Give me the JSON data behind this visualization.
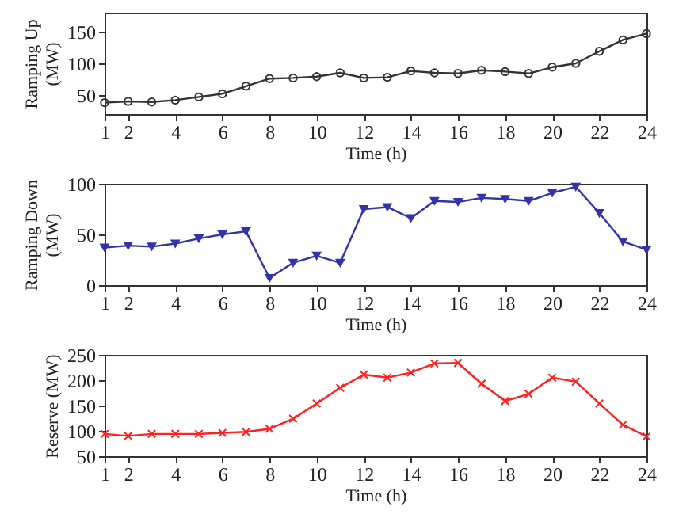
{
  "chart_data": [
    {
      "type": "line",
      "xlabel": "Time (h)",
      "ylabel": "Ramping Up (MW)",
      "x": [
        1,
        2,
        3,
        4,
        5,
        6,
        7,
        8,
        9,
        10,
        11,
        12,
        13,
        14,
        15,
        16,
        17,
        18,
        19,
        20,
        21,
        22,
        23,
        24
      ],
      "xlim": [
        1,
        24
      ],
      "xticks": [
        1,
        2,
        4,
        6,
        8,
        10,
        12,
        14,
        16,
        18,
        20,
        22,
        24
      ],
      "ylim": [
        20,
        180
      ],
      "yticks": [
        50,
        100,
        150
      ],
      "marker": "circle",
      "grid": false,
      "series": [
        {
          "color": "#333333",
          "values": [
            38,
            40,
            39,
            42,
            47,
            52,
            64,
            76,
            77,
            79,
            85,
            77,
            78,
            88,
            85,
            84,
            89,
            87,
            84,
            94,
            100,
            119,
            137,
            147
          ]
        }
      ]
    },
    {
      "type": "line",
      "xlabel": "Time (h)",
      "ylabel": "Ramping Down (MW)",
      "x": [
        1,
        2,
        3,
        4,
        5,
        6,
        7,
        8,
        9,
        10,
        11,
        12,
        13,
        14,
        15,
        16,
        17,
        18,
        19,
        20,
        21,
        22,
        23,
        24
      ],
      "xlim": [
        1,
        24
      ],
      "xticks": [
        1,
        2,
        4,
        6,
        8,
        10,
        12,
        14,
        16,
        18,
        20,
        22,
        24
      ],
      "ylim": [
        0,
        100
      ],
      "yticks": [
        0,
        50,
        100
      ],
      "marker": "triangle",
      "grid": false,
      "series": [
        {
          "color": "#3333aa",
          "values": [
            37,
            39,
            38,
            41,
            46,
            50,
            53,
            7,
            22,
            29,
            22,
            75,
            77,
            66,
            83,
            82,
            86,
            85,
            83,
            91,
            97,
            71,
            43,
            35
          ]
        }
      ]
    },
    {
      "type": "line",
      "xlabel": "Time (h)",
      "ylabel": "Reserve (MW)",
      "x": [
        1,
        2,
        3,
        4,
        5,
        6,
        7,
        8,
        9,
        10,
        11,
        12,
        13,
        14,
        15,
        16,
        17,
        18,
        19,
        20,
        21,
        22,
        23,
        24
      ],
      "xlim": [
        1,
        24
      ],
      "xticks": [
        1,
        2,
        4,
        6,
        8,
        10,
        12,
        14,
        16,
        18,
        20,
        22,
        24
      ],
      "ylim": [
        50,
        250
      ],
      "yticks": [
        50,
        100,
        150,
        200,
        250
      ],
      "marker": "cross",
      "grid": false,
      "series": [
        {
          "color": "#ff2020",
          "values": [
            94,
            90,
            94,
            94,
            94,
            96,
            98,
            104,
            124,
            154,
            185,
            211,
            205,
            215,
            233,
            234,
            193,
            159,
            173,
            205,
            197,
            154,
            112,
            89
          ]
        }
      ]
    }
  ]
}
